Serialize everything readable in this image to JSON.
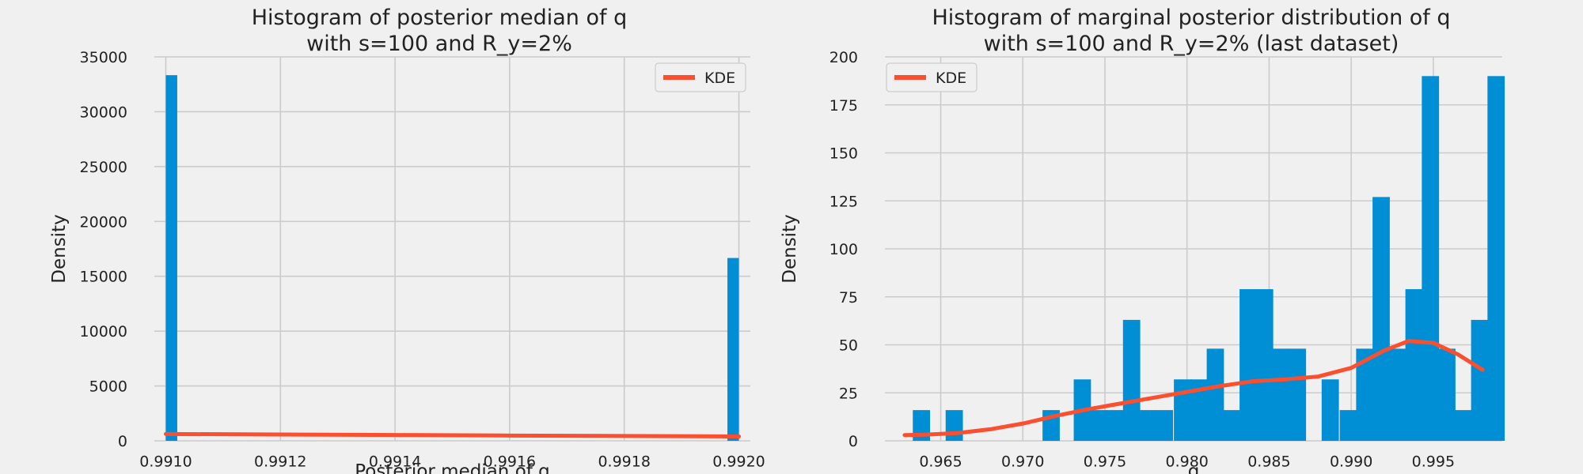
{
  "colors": {
    "background": "#f0f0f0",
    "grid": "#cbcbcb",
    "bar": "#008fd5",
    "kde": "#fc4f30"
  },
  "chart_data": [
    {
      "type": "bar",
      "title_line1": "Histogram of posterior median of q",
      "title_line2": "with s=100 and R_y=2%",
      "xlabel": "Posterior median of q",
      "ylabel": "Density",
      "xlim": [
        0.99098,
        0.99202
      ],
      "ylim": [
        0,
        35000
      ],
      "xticks": [
        0.991,
        0.9912,
        0.9914,
        0.9916,
        0.9918,
        0.992
      ],
      "xtick_labels": [
        "0.9910",
        "0.9912",
        "0.9914",
        "0.9916",
        "0.9918",
        "0.9920"
      ],
      "yticks": [
        0,
        5000,
        10000,
        15000,
        20000,
        25000,
        30000,
        35000
      ],
      "ytick_labels": [
        "0",
        "5000",
        "10000",
        "15000",
        "20000",
        "25000",
        "30000",
        "35000"
      ],
      "bar_width": 2e-05,
      "bars": [
        {
          "x": 0.991,
          "value": 33333
        },
        {
          "x": 0.99198,
          "value": 16667
        }
      ],
      "kde": {
        "name": "KDE",
        "x": [
          0.991,
          0.9912,
          0.9914,
          0.9916,
          0.9918,
          0.992
        ],
        "y": [
          620,
          580,
          530,
          480,
          440,
          400
        ]
      },
      "legend": {
        "label": "KDE",
        "position": "top-right"
      }
    },
    {
      "type": "bar",
      "title_line1": "Histogram of marginal posterior distribution of q",
      "title_line2": "with s=100 and R_y=2% (last dataset)",
      "xlabel": "q",
      "ylabel": "Density",
      "xlim": [
        0.9616,
        0.9992
      ],
      "ylim": [
        0,
        200
      ],
      "xticks": [
        0.965,
        0.97,
        0.975,
        0.98,
        0.985,
        0.99,
        0.995
      ],
      "xtick_labels": [
        "0.965",
        "0.970",
        "0.975",
        "0.980",
        "0.985",
        "0.990",
        "0.995"
      ],
      "yticks": [
        0,
        25,
        50,
        75,
        100,
        125,
        150,
        175,
        200
      ],
      "ytick_labels": [
        "0",
        "25",
        "50",
        "75",
        "100",
        "125",
        "150",
        "175",
        "200"
      ],
      "bar_width": 0.00105,
      "bars": [
        {
          "x": 0.9633,
          "value": 16
        },
        {
          "x": 0.9653,
          "value": 16
        },
        {
          "x": 0.9712,
          "value": 16
        },
        {
          "x": 0.9731,
          "value": 32
        },
        {
          "x": 0.9741,
          "value": 16
        },
        {
          "x": 0.9751,
          "value": 16
        },
        {
          "x": 0.9761,
          "value": 63
        },
        {
          "x": 0.9771,
          "value": 16
        },
        {
          "x": 0.9781,
          "value": 16
        },
        {
          "x": 0.9792,
          "value": 32
        },
        {
          "x": 0.9802,
          "value": 32
        },
        {
          "x": 0.9812,
          "value": 48
        },
        {
          "x": 0.9822,
          "value": 16
        },
        {
          "x": 0.9832,
          "value": 79
        },
        {
          "x": 0.9842,
          "value": 79
        },
        {
          "x": 0.9852,
          "value": 48
        },
        {
          "x": 0.9862,
          "value": 48
        },
        {
          "x": 0.9882,
          "value": 32
        },
        {
          "x": 0.9893,
          "value": 16
        },
        {
          "x": 0.9903,
          "value": 48
        },
        {
          "x": 0.9913,
          "value": 127
        },
        {
          "x": 0.9923,
          "value": 48
        },
        {
          "x": 0.9933,
          "value": 79
        },
        {
          "x": 0.9943,
          "value": 190
        },
        {
          "x": 0.9953,
          "value": 48
        },
        {
          "x": 0.9963,
          "value": 16
        },
        {
          "x": 0.9973,
          "value": 63
        },
        {
          "x": 0.9983,
          "value": 190
        }
      ],
      "kde": {
        "name": "KDE",
        "x": [
          0.9628,
          0.964,
          0.966,
          0.968,
          0.97,
          0.972,
          0.974,
          0.976,
          0.978,
          0.98,
          0.982,
          0.984,
          0.986,
          0.988,
          0.99,
          0.992,
          0.9935,
          0.995,
          0.9965,
          0.998
        ],
        "y": [
          3,
          3.2,
          4,
          6,
          9,
          13,
          16.5,
          19.5,
          22.5,
          25.5,
          28.5,
          31,
          32,
          33.5,
          38,
          47,
          52,
          51,
          45,
          37
        ]
      },
      "legend": {
        "label": "KDE",
        "position": "top-left"
      }
    }
  ]
}
